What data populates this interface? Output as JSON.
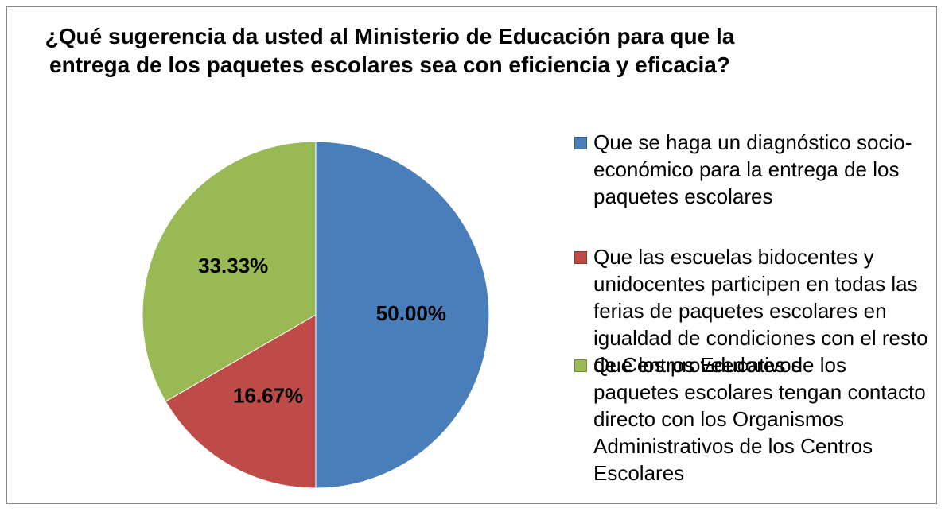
{
  "chart_data": {
    "type": "pie",
    "title": "¿Qué sugerencia da usted al Ministerio de Educación para que la entrega de los paquetes escolares sea con eficiencia y eficacia?",
    "categories": [
      "Que se haga un diagnóstico socio-económico para la entrega de los paquetes escolares",
      "Que las escuelas bidocentes y unidocentes participen en todas las ferias de paquetes escolares en igualdad de condiciones con el resto de Centros Educativos",
      "Que los proveedores de los paquetes escolares tengan contacto directo con los Organismos Administrativos de los Centros Escolares"
    ],
    "values": [
      50,
      16.67,
      33.33
    ],
    "value_labels": [
      "50.00%",
      "16.67%",
      "33.33%"
    ],
    "colors": [
      "#4a7ebb",
      "#be4b48",
      "#98b954"
    ],
    "legend": "right"
  }
}
